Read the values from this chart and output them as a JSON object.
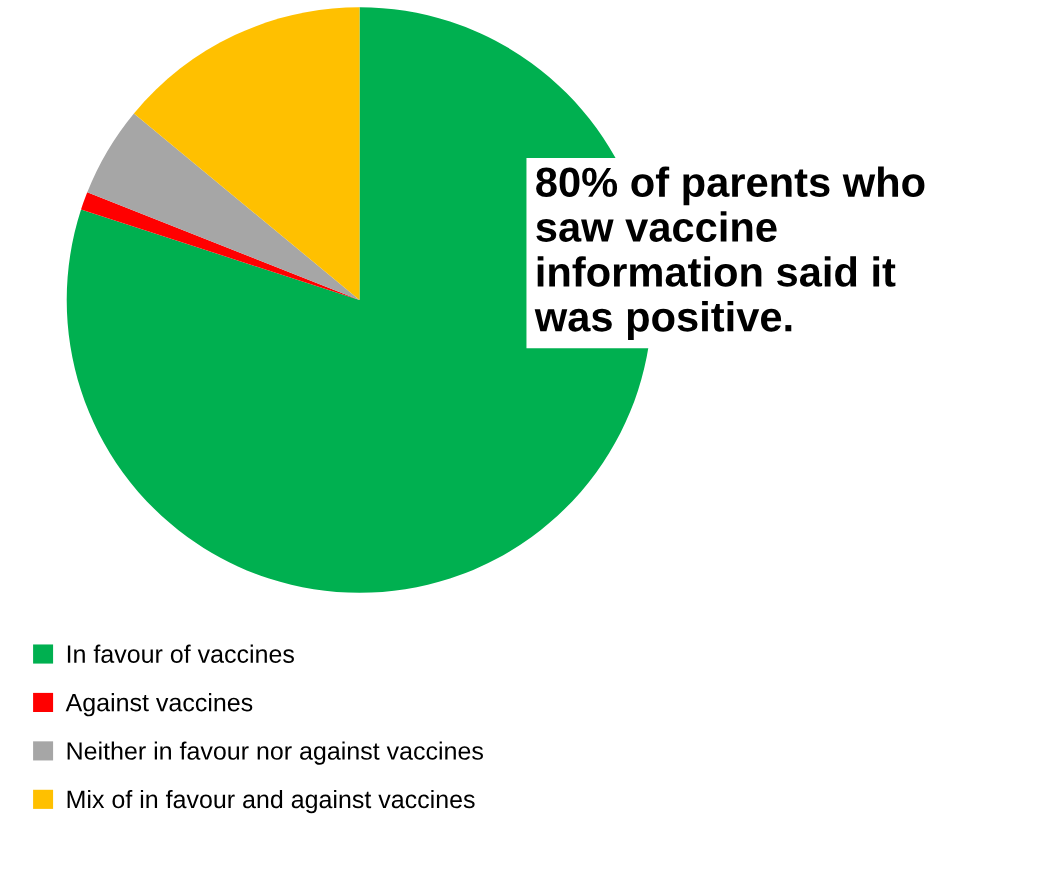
{
  "chart_data": {
    "type": "pie",
    "categories": [
      "In favour of vaccines",
      "Against vaccines",
      "Neither in favour nor against vaccines",
      "Mix of in favour and against vaccines"
    ],
    "values": [
      80,
      1,
      5,
      14
    ],
    "colors": [
      "#00b050",
      "#ff0000",
      "#a6a6a6",
      "#ffc000"
    ],
    "annotations": [
      "80% of parents who\nsaw vaccine\ninformation said it\nwas positive."
    ],
    "legend": "bottom left"
  }
}
